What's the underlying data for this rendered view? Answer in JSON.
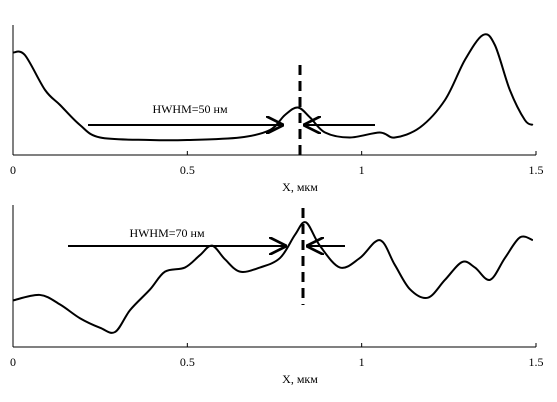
{
  "chart_data": [
    {
      "type": "line",
      "x_label": "X, мкм",
      "annotation": "HWHM=50 нм",
      "x": [
        0,
        0.034,
        0.092,
        0.135,
        0.192,
        0.25,
        0.393,
        0.5,
        0.651,
        0.737,
        0.78,
        0.817,
        0.852,
        0.895,
        0.966,
        1.052,
        1.095,
        1.167,
        1.239,
        1.296,
        1.348,
        1.382,
        1.425,
        1.468,
        1.491
      ],
      "series": [
        {
          "color": "#000000",
          "values": [
            0.82,
            0.8,
            0.52,
            0.4,
            0.24,
            0.14,
            0.12,
            0.12,
            0.14,
            0.2,
            0.32,
            0.38,
            0.3,
            0.18,
            0.14,
            0.18,
            0.14,
            0.22,
            0.44,
            0.76,
            0.96,
            0.88,
            0.52,
            0.28,
            0.24
          ]
        }
      ],
      "xlim": [
        0,
        1.5
      ],
      "xticks": [
        0,
        0.5,
        1,
        1.5
      ],
      "ylim": [
        0,
        1
      ]
    },
    {
      "type": "line",
      "x_label": "X, мкм",
      "annotation": "HWHM=70 нм",
      "x": [
        0,
        0.077,
        0.135,
        0.192,
        0.25,
        0.293,
        0.336,
        0.393,
        0.436,
        0.493,
        0.536,
        0.571,
        0.608,
        0.651,
        0.708,
        0.766,
        0.809,
        0.84,
        0.88,
        0.938,
        0.995,
        1.052,
        1.095,
        1.139,
        1.19,
        1.239,
        1.288,
        1.325,
        1.368,
        1.411,
        1.454,
        1.491
      ],
      "series": [
        {
          "color": "#000000",
          "values": [
            0.34,
            0.38,
            0.31,
            0.21,
            0.14,
            0.11,
            0.27,
            0.42,
            0.55,
            0.58,
            0.67,
            0.74,
            0.64,
            0.55,
            0.58,
            0.65,
            0.82,
            0.91,
            0.74,
            0.58,
            0.65,
            0.78,
            0.6,
            0.42,
            0.36,
            0.49,
            0.62,
            0.58,
            0.49,
            0.65,
            0.8,
            0.78
          ]
        }
      ],
      "xlim": [
        0,
        1.5
      ],
      "xticks": [
        0,
        0.5,
        1,
        1.5
      ],
      "ylim": [
        0,
        1
      ]
    }
  ]
}
